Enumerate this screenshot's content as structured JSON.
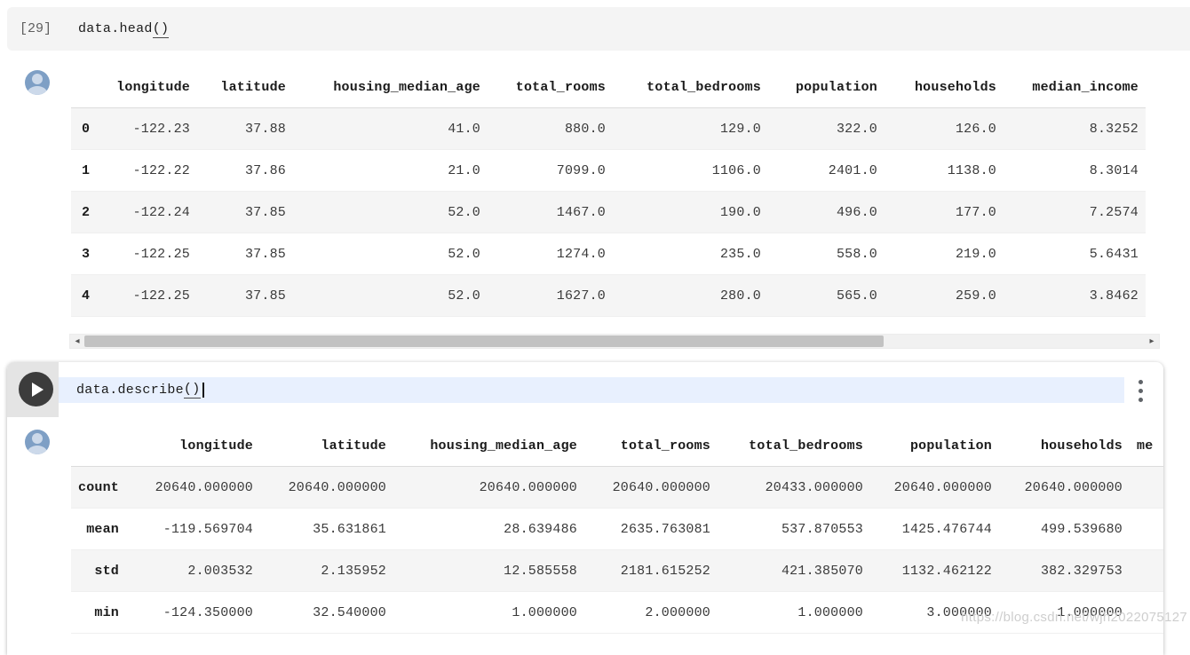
{
  "watermark": "https://blog.csdn.net/wjh2022075127",
  "icons": {
    "run_button": "play-triangle",
    "cell_menu": "vertical-kebab-dots",
    "scroll_left": "◂",
    "scroll_right": "▸",
    "avatar": "person-silhouette"
  },
  "colors": {
    "cell_bar_bg": "#f4f4f4",
    "code_highlight": "#e8f0fe",
    "row_stripe": "#f5f5f5",
    "avatar_blue": "#7e9fc5",
    "play_button": "#3c3c3c",
    "scrollbar_thumb": "#c2c2c2"
  },
  "cell1": {
    "execution_count": "[29]",
    "code_text": "data.head",
    "code_parens": "()",
    "output_table": {
      "columns": [
        "",
        "longitude",
        "latitude",
        "housing_median_age",
        "total_rooms",
        "total_bedrooms",
        "population",
        "households",
        "median_income"
      ],
      "rows": [
        {
          "index": "0",
          "values": [
            "-122.23",
            "37.88",
            "41.0",
            "880.0",
            "129.0",
            "322.0",
            "126.0",
            "8.3252"
          ]
        },
        {
          "index": "1",
          "values": [
            "-122.22",
            "37.86",
            "21.0",
            "7099.0",
            "1106.0",
            "2401.0",
            "1138.0",
            "8.3014"
          ]
        },
        {
          "index": "2",
          "values": [
            "-122.24",
            "37.85",
            "52.0",
            "1467.0",
            "190.0",
            "496.0",
            "177.0",
            "7.2574"
          ]
        },
        {
          "index": "3",
          "values": [
            "-122.25",
            "37.85",
            "52.0",
            "1274.0",
            "235.0",
            "558.0",
            "219.0",
            "5.6431"
          ]
        },
        {
          "index": "4",
          "values": [
            "-122.25",
            "37.85",
            "52.0",
            "1627.0",
            "280.0",
            "565.0",
            "259.0",
            "3.8462"
          ]
        }
      ]
    }
  },
  "cell2": {
    "code_text": "data.describe",
    "code_parens": "()",
    "output_table": {
      "columns": [
        "",
        "longitude",
        "latitude",
        "housing_median_age",
        "total_rooms",
        "total_bedrooms",
        "population",
        "households",
        "me"
      ],
      "rows": [
        {
          "index": "count",
          "values": [
            "20640.000000",
            "20640.000000",
            "20640.000000",
            "20640.000000",
            "20433.000000",
            "20640.000000",
            "20640.000000",
            ""
          ]
        },
        {
          "index": "mean",
          "values": [
            "-119.569704",
            "35.631861",
            "28.639486",
            "2635.763081",
            "537.870553",
            "1425.476744",
            "499.539680",
            ""
          ]
        },
        {
          "index": "std",
          "values": [
            "2.003532",
            "2.135952",
            "12.585558",
            "2181.615252",
            "421.385070",
            "1132.462122",
            "382.329753",
            ""
          ]
        },
        {
          "index": "min",
          "values": [
            "-124.350000",
            "32.540000",
            "1.000000",
            "2.000000",
            "1.000000",
            "3.000000",
            "1.000000",
            ""
          ]
        }
      ]
    }
  }
}
